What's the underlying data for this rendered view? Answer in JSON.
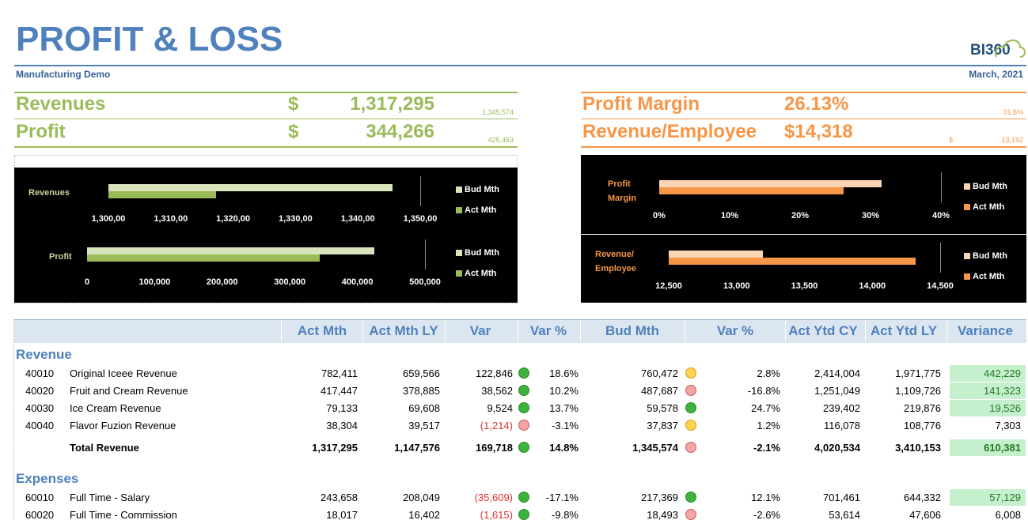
{
  "header": {
    "title": "PROFIT & LOSS",
    "subtitle": "Manufacturing Demo",
    "date": "March, 2021",
    "logo": "BI360"
  },
  "kpis_left": [
    {
      "label": "Revenues",
      "currency": "$",
      "value": "1,317,295",
      "budget": "1,345,574"
    },
    {
      "label": "Profit",
      "currency": "$",
      "value": "344,266",
      "budget": "425,463"
    }
  ],
  "kpis_right": [
    {
      "label": "Profit Margin",
      "value": "26.13%",
      "budget": "31.6%"
    },
    {
      "label": "Revenue/Employee",
      "value": "$14,318",
      "budget_currency": "$",
      "budget": "13,192"
    }
  ],
  "charts": [
    {
      "label": "Revenues",
      "xlim": [
        1300000,
        1350000
      ],
      "ticks": [
        {
          "value": 1300000,
          "label": "1,300,00"
        },
        {
          "value": 1310000,
          "label": "1,310,00"
        },
        {
          "value": 1320000,
          "label": "1,320,00"
        },
        {
          "value": 1330000,
          "label": "1,330,00"
        },
        {
          "value": 1340000,
          "label": "1,340,00"
        },
        {
          "value": 1350000,
          "label": "1,350,00"
        }
      ],
      "series": [
        {
          "name": "Bud Mth",
          "color": "#d8e4bc",
          "value": 1345574
        },
        {
          "name": "Act Mth",
          "color": "#9bbb59",
          "value": 1317295
        }
      ]
    },
    {
      "label": "Profit",
      "xlim": [
        0,
        500000
      ],
      "ticks": [
        0,
        {
          "value": 100000,
          "label": "100,000"
        },
        {
          "value": 200000,
          "label": "200,000"
        },
        {
          "value": 300000,
          "label": "300,000"
        },
        {
          "value": 400000,
          "label": "400,000"
        },
        {
          "value": 500000,
          "label": "500,000"
        }
      ],
      "series": [
        {
          "name": "Bud Mth",
          "color": "#d8e4bc",
          "value": 425463
        },
        {
          "name": "Act Mth",
          "color": "#9bbb59",
          "value": 344266
        }
      ]
    },
    {
      "label": "Profit Margin",
      "xlim": [
        0,
        40
      ],
      "ticks": [
        {
          "value": 0,
          "label": "0%"
        },
        {
          "value": 10,
          "label": "10%"
        },
        {
          "value": 20,
          "label": "20%"
        },
        {
          "value": 30,
          "label": "30%"
        },
        {
          "value": 40,
          "label": "40%"
        }
      ],
      "series": [
        {
          "name": "Bud Mth",
          "color": "#fcd5b4",
          "value": 31.6
        },
        {
          "name": "Act Mth",
          "color": "#f79646",
          "value": 26.13
        }
      ]
    },
    {
      "label": "Revenue/ Employee",
      "xlim": [
        12500,
        14500
      ],
      "ticks": [
        {
          "value": 12500,
          "label": "12,500"
        },
        {
          "value": 13000,
          "label": "13,000"
        },
        {
          "value": 13500,
          "label": "13,500"
        },
        {
          "value": 14000,
          "label": "14,000"
        },
        {
          "value": 14500,
          "label": "14,500"
        }
      ],
      "series": [
        {
          "name": "Bud Mth",
          "color": "#fcd5b4",
          "value": 13192
        },
        {
          "name": "Act Mth",
          "color": "#f79646",
          "value": 14318
        }
      ]
    }
  ],
  "table": {
    "columns": [
      "Act Mth",
      "Act Mth LY",
      "Var",
      "Var %",
      "Bud Mth",
      "Var %",
      "Act Ytd CY",
      "Act Ytd LY",
      "Variance"
    ],
    "sections": [
      {
        "title": "Revenue",
        "rows": [
          {
            "code": "40010",
            "name": "Original Iceee Revenue",
            "cells": [
              "782,411",
              "659,566",
              "122,846",
              "18.6%",
              "760,472",
              "2.8%",
              "2,414,004",
              "1,971,775",
              "442,229"
            ],
            "var_status": "green",
            "bud_status": "yellow",
            "highlight": true
          },
          {
            "code": "40020",
            "name": "Fruit and Cream Revenue",
            "cells": [
              "417,447",
              "378,885",
              "38,562",
              "10.2%",
              "487,687",
              "-16.8%",
              "1,251,049",
              "1,109,726",
              "141,323"
            ],
            "var_status": "green",
            "bud_status": "red",
            "highlight": true
          },
          {
            "code": "40030",
            "name": "Ice Cream Revenue",
            "cells": [
              "79,133",
              "69,608",
              "9,524",
              "13.7%",
              "59,578",
              "24.7%",
              "239,402",
              "219,876",
              "19,526"
            ],
            "var_status": "green",
            "bud_status": "green",
            "highlight": true
          },
          {
            "code": "40040",
            "name": "Flavor Fuzion Revenue",
            "cells": [
              "38,304",
              "39,517",
              "(1,214)",
              "-3.1%",
              "37,837",
              "1.2%",
              "116,078",
              "108,776",
              "7,303"
            ],
            "var_status": "red",
            "bud_status": "yellow",
            "highlight": false
          },
          {
            "name": "Total Revenue",
            "total": true,
            "cells": [
              "1,317,295",
              "1,147,576",
              "169,718",
              "14.8%",
              "1,345,574",
              "-2.1%",
              "4,020,534",
              "3,410,153",
              "610,381"
            ],
            "var_status": "green",
            "bud_status": "red",
            "highlight": true
          }
        ]
      },
      {
        "title": "Expenses",
        "rows": [
          {
            "code": "60010",
            "name": "Full Time - Salary",
            "cells": [
              "243,658",
              "208,049",
              "(35,609)",
              "-17.1%",
              "217,369",
              "12.1%",
              "701,461",
              "644,332",
              "57,129"
            ],
            "var_status": "green",
            "bud_status": "green",
            "highlight": true
          },
          {
            "code": "60020",
            "name": "Full Time - Commission",
            "cells": [
              "18,017",
              "16,402",
              "(1,615)",
              "-9.8%",
              "18,493",
              "-2.6%",
              "53,614",
              "47,606",
              "6,008"
            ],
            "var_status": "green",
            "bud_status": "red",
            "highlight": false
          }
        ]
      }
    ]
  }
}
